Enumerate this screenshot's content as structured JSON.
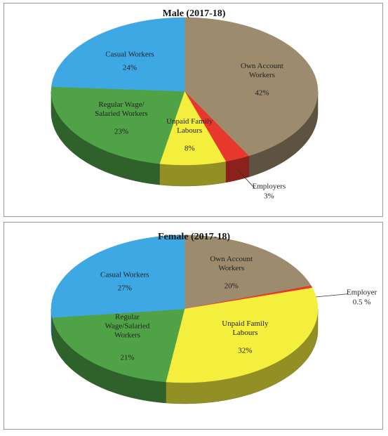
{
  "chart_data": [
    {
      "type": "pie",
      "title": "Male (2017-18)",
      "categories": [
        "Own Account Workers",
        "Employers",
        "Unpaid Family Labours",
        "Regular Wage/ Salaried Workers",
        "Casual Workers"
      ],
      "values": [
        42,
        3,
        8,
        23,
        24
      ],
      "value_labels": [
        "42%",
        "3%",
        "8%",
        "23%",
        "24%"
      ],
      "colors": [
        "#9c8b6c",
        "#e8372c",
        "#f4ee3c",
        "#4fa346",
        "#3ea8e5"
      ]
    },
    {
      "type": "pie",
      "title": "Female (2017-18)",
      "categories": [
        "Own Account Workers",
        "Employer",
        "Unpaid Family Labours",
        "Regular Wage/Salaried Workers",
        "Casual Workers"
      ],
      "values": [
        20,
        0.5,
        32,
        21,
        27
      ],
      "value_labels": [
        "20%",
        "0.5 %",
        "32%",
        "21%",
        "27%"
      ],
      "colors": [
        "#9c8b6c",
        "#e8372c",
        "#f4ee3c",
        "#4fa346",
        "#3ea8e5"
      ]
    }
  ]
}
